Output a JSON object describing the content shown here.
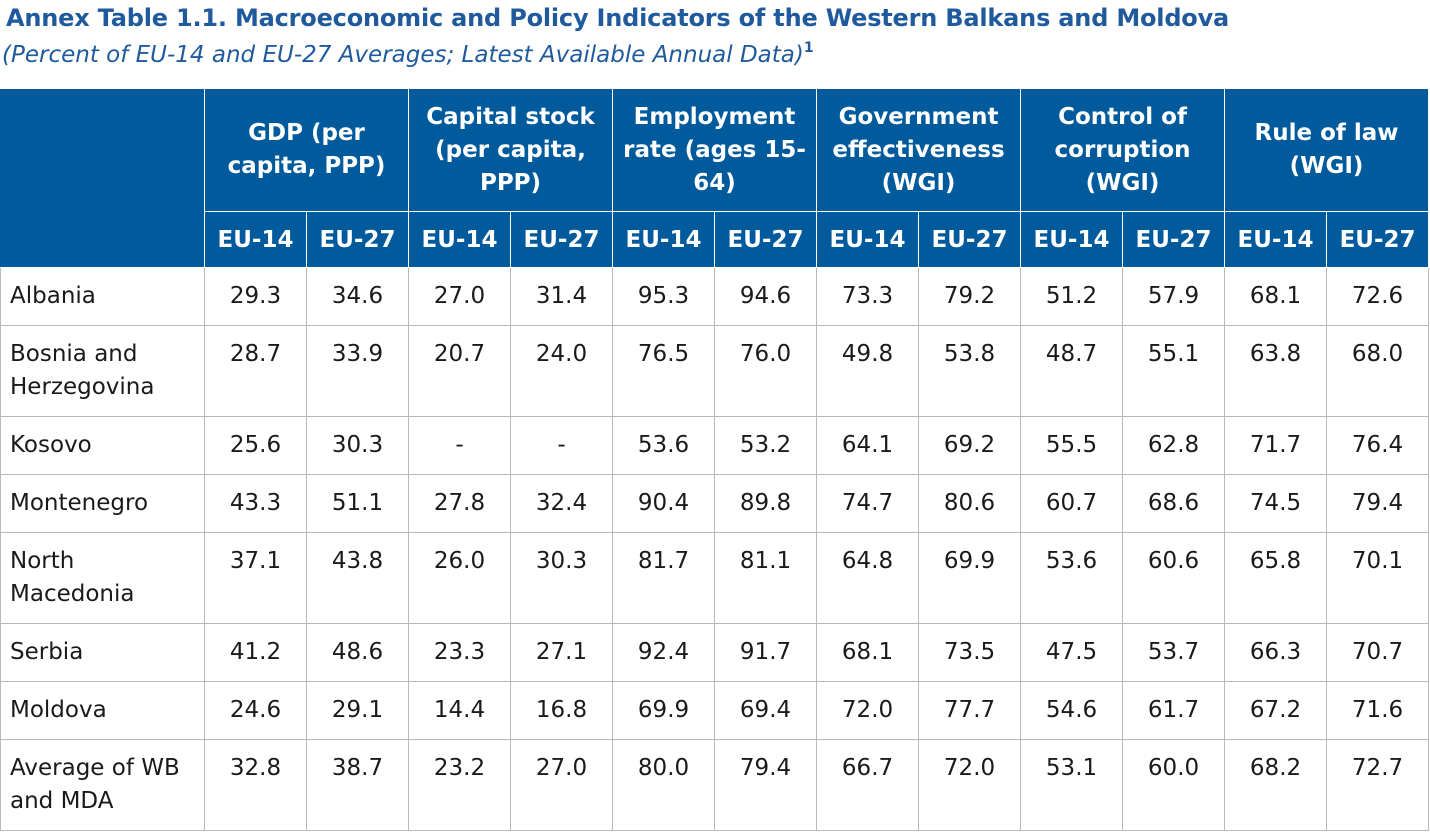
{
  "title": "Annex Table 1.1. Macroeconomic and Policy Indicators of the Western Balkans and Moldova",
  "subtitle": "(Percent of EU-14 and EU-27 Averages; Latest Available Annual Data)",
  "footnote_marker": "1",
  "table": {
    "corner": "",
    "groups": [
      "GDP (per capita, PPP)",
      "Capital stock (per capita, PPP)",
      "Employment rate (ages 15-64)",
      "Government effectiveness (WGI)",
      "Control of corruption (WGI)",
      "Rule of law (WGI)"
    ],
    "sub_headers": [
      "EU-14",
      "EU-27",
      "EU-14",
      "EU-27",
      "EU-14",
      "EU-27",
      "EU-14",
      "EU-27",
      "EU-14",
      "EU-27",
      "EU-14",
      "EU-27"
    ],
    "rows": [
      {
        "country": "Albania",
        "values": [
          "29.3",
          "34.6",
          "27.0",
          "31.4",
          "95.3",
          "94.6",
          "73.3",
          "79.2",
          "51.2",
          "57.9",
          "68.1",
          "72.6"
        ]
      },
      {
        "country": "Bosnia and Herzegovina",
        "values": [
          "28.7",
          "33.9",
          "20.7",
          "24.0",
          "76.5",
          "76.0",
          "49.8",
          "53.8",
          "48.7",
          "55.1",
          "63.8",
          "68.0"
        ]
      },
      {
        "country": "Kosovo",
        "values": [
          "25.6",
          "30.3",
          "-",
          "-",
          "53.6",
          "53.2",
          "64.1",
          "69.2",
          "55.5",
          "62.8",
          "71.7",
          "76.4"
        ]
      },
      {
        "country": "Montenegro",
        "values": [
          "43.3",
          "51.1",
          "27.8",
          "32.4",
          "90.4",
          "89.8",
          "74.7",
          "80.6",
          "60.7",
          "68.6",
          "74.5",
          "79.4"
        ]
      },
      {
        "country": "North Macedonia",
        "values": [
          "37.1",
          "43.8",
          "26.0",
          "30.3",
          "81.7",
          "81.1",
          "64.8",
          "69.9",
          "53.6",
          "60.6",
          "65.8",
          "70.1"
        ]
      },
      {
        "country": "Serbia",
        "values": [
          "41.2",
          "48.6",
          "23.3",
          "27.1",
          "92.4",
          "91.7",
          "68.1",
          "73.5",
          "47.5",
          "53.7",
          "66.3",
          "70.7"
        ]
      },
      {
        "country": "Moldova",
        "values": [
          "24.6",
          "29.1",
          "14.4",
          "16.8",
          "69.9",
          "69.4",
          "72.0",
          "77.7",
          "54.6",
          "61.7",
          "67.2",
          "71.6"
        ]
      },
      {
        "country": "Average of WB and MDA",
        "values": [
          "32.8",
          "38.7",
          "23.2",
          "27.0",
          "80.0",
          "79.4",
          "66.7",
          "72.0",
          "53.1",
          "60.0",
          "68.2",
          "72.7"
        ]
      }
    ]
  },
  "colors": {
    "title": "#1f5a9c",
    "header_bg": "#005a9c",
    "header_text": "#ffffff",
    "grid": "#b9b9b9"
  }
}
